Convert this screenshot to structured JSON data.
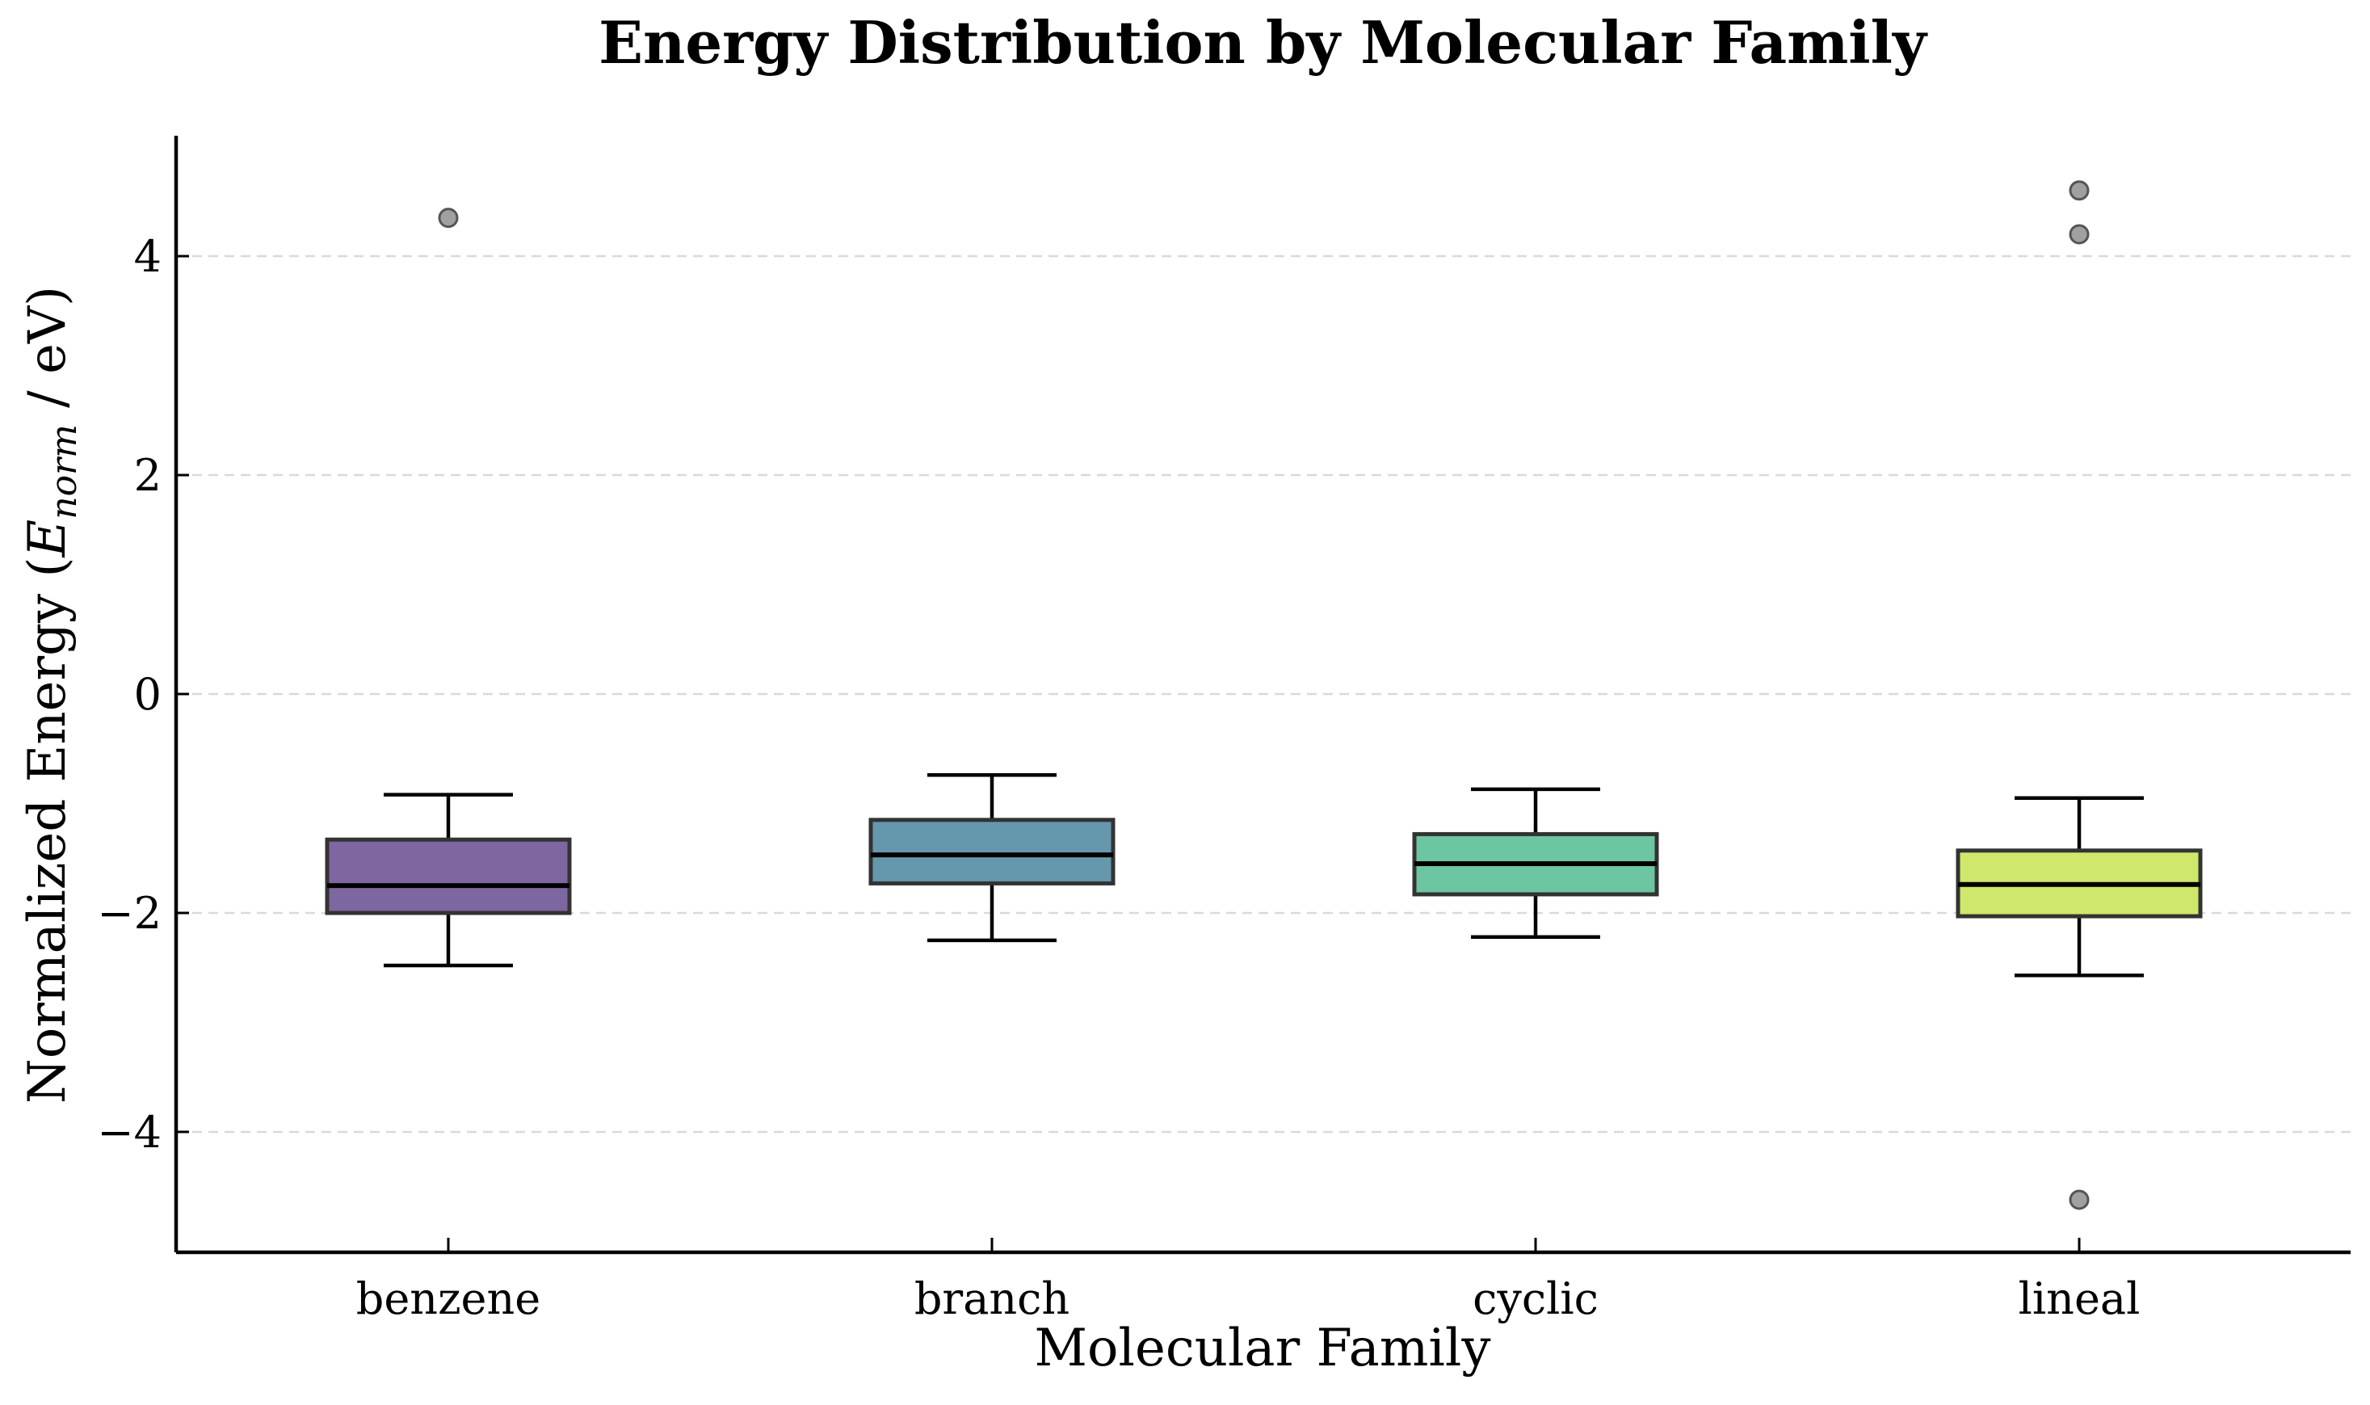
{
  "chart_data": {
    "type": "box",
    "title": "Energy Distribution by Molecular Family",
    "xlabel": "Molecular Family",
    "ylabel": {
      "prefix": "Normalized Energy (",
      "symbol": "E",
      "subscript": "norm",
      "suffix": " / eV)"
    },
    "categories": [
      "benzene",
      "branch",
      "cyclic",
      "lineal"
    ],
    "boxes": [
      {
        "category": "benzene",
        "whisker_low": -2.48,
        "q1": -2.0,
        "median": -1.75,
        "q3": -1.33,
        "whisker_high": -0.92,
        "outliers": [
          4.35
        ],
        "color": "#7e66a0"
      },
      {
        "category": "branch",
        "whisker_low": -2.25,
        "q1": -1.73,
        "median": -1.47,
        "q3": -1.15,
        "whisker_high": -0.74,
        "outliers": [],
        "color": "#6597ad"
      },
      {
        "category": "cyclic",
        "whisker_low": -2.22,
        "q1": -1.83,
        "median": -1.55,
        "q3": -1.28,
        "whisker_high": -0.87,
        "outliers": [],
        "color": "#6cc6a1"
      },
      {
        "category": "lineal",
        "whisker_low": -2.57,
        "q1": -2.03,
        "median": -1.74,
        "q3": -1.43,
        "whisker_high": -0.95,
        "outliers": [
          4.6,
          4.2,
          -4.62
        ],
        "color": "#cfe76a"
      }
    ],
    "yticks": [
      -4,
      -2,
      0,
      2,
      4
    ],
    "ytick_labels": [
      "−4",
      "−2",
      "0",
      "2",
      "4"
    ],
    "ylim": [
      -5.1,
      5.1
    ],
    "grid": "y-dashed",
    "outlier_color": "#a0a0a0",
    "legend": "none"
  }
}
